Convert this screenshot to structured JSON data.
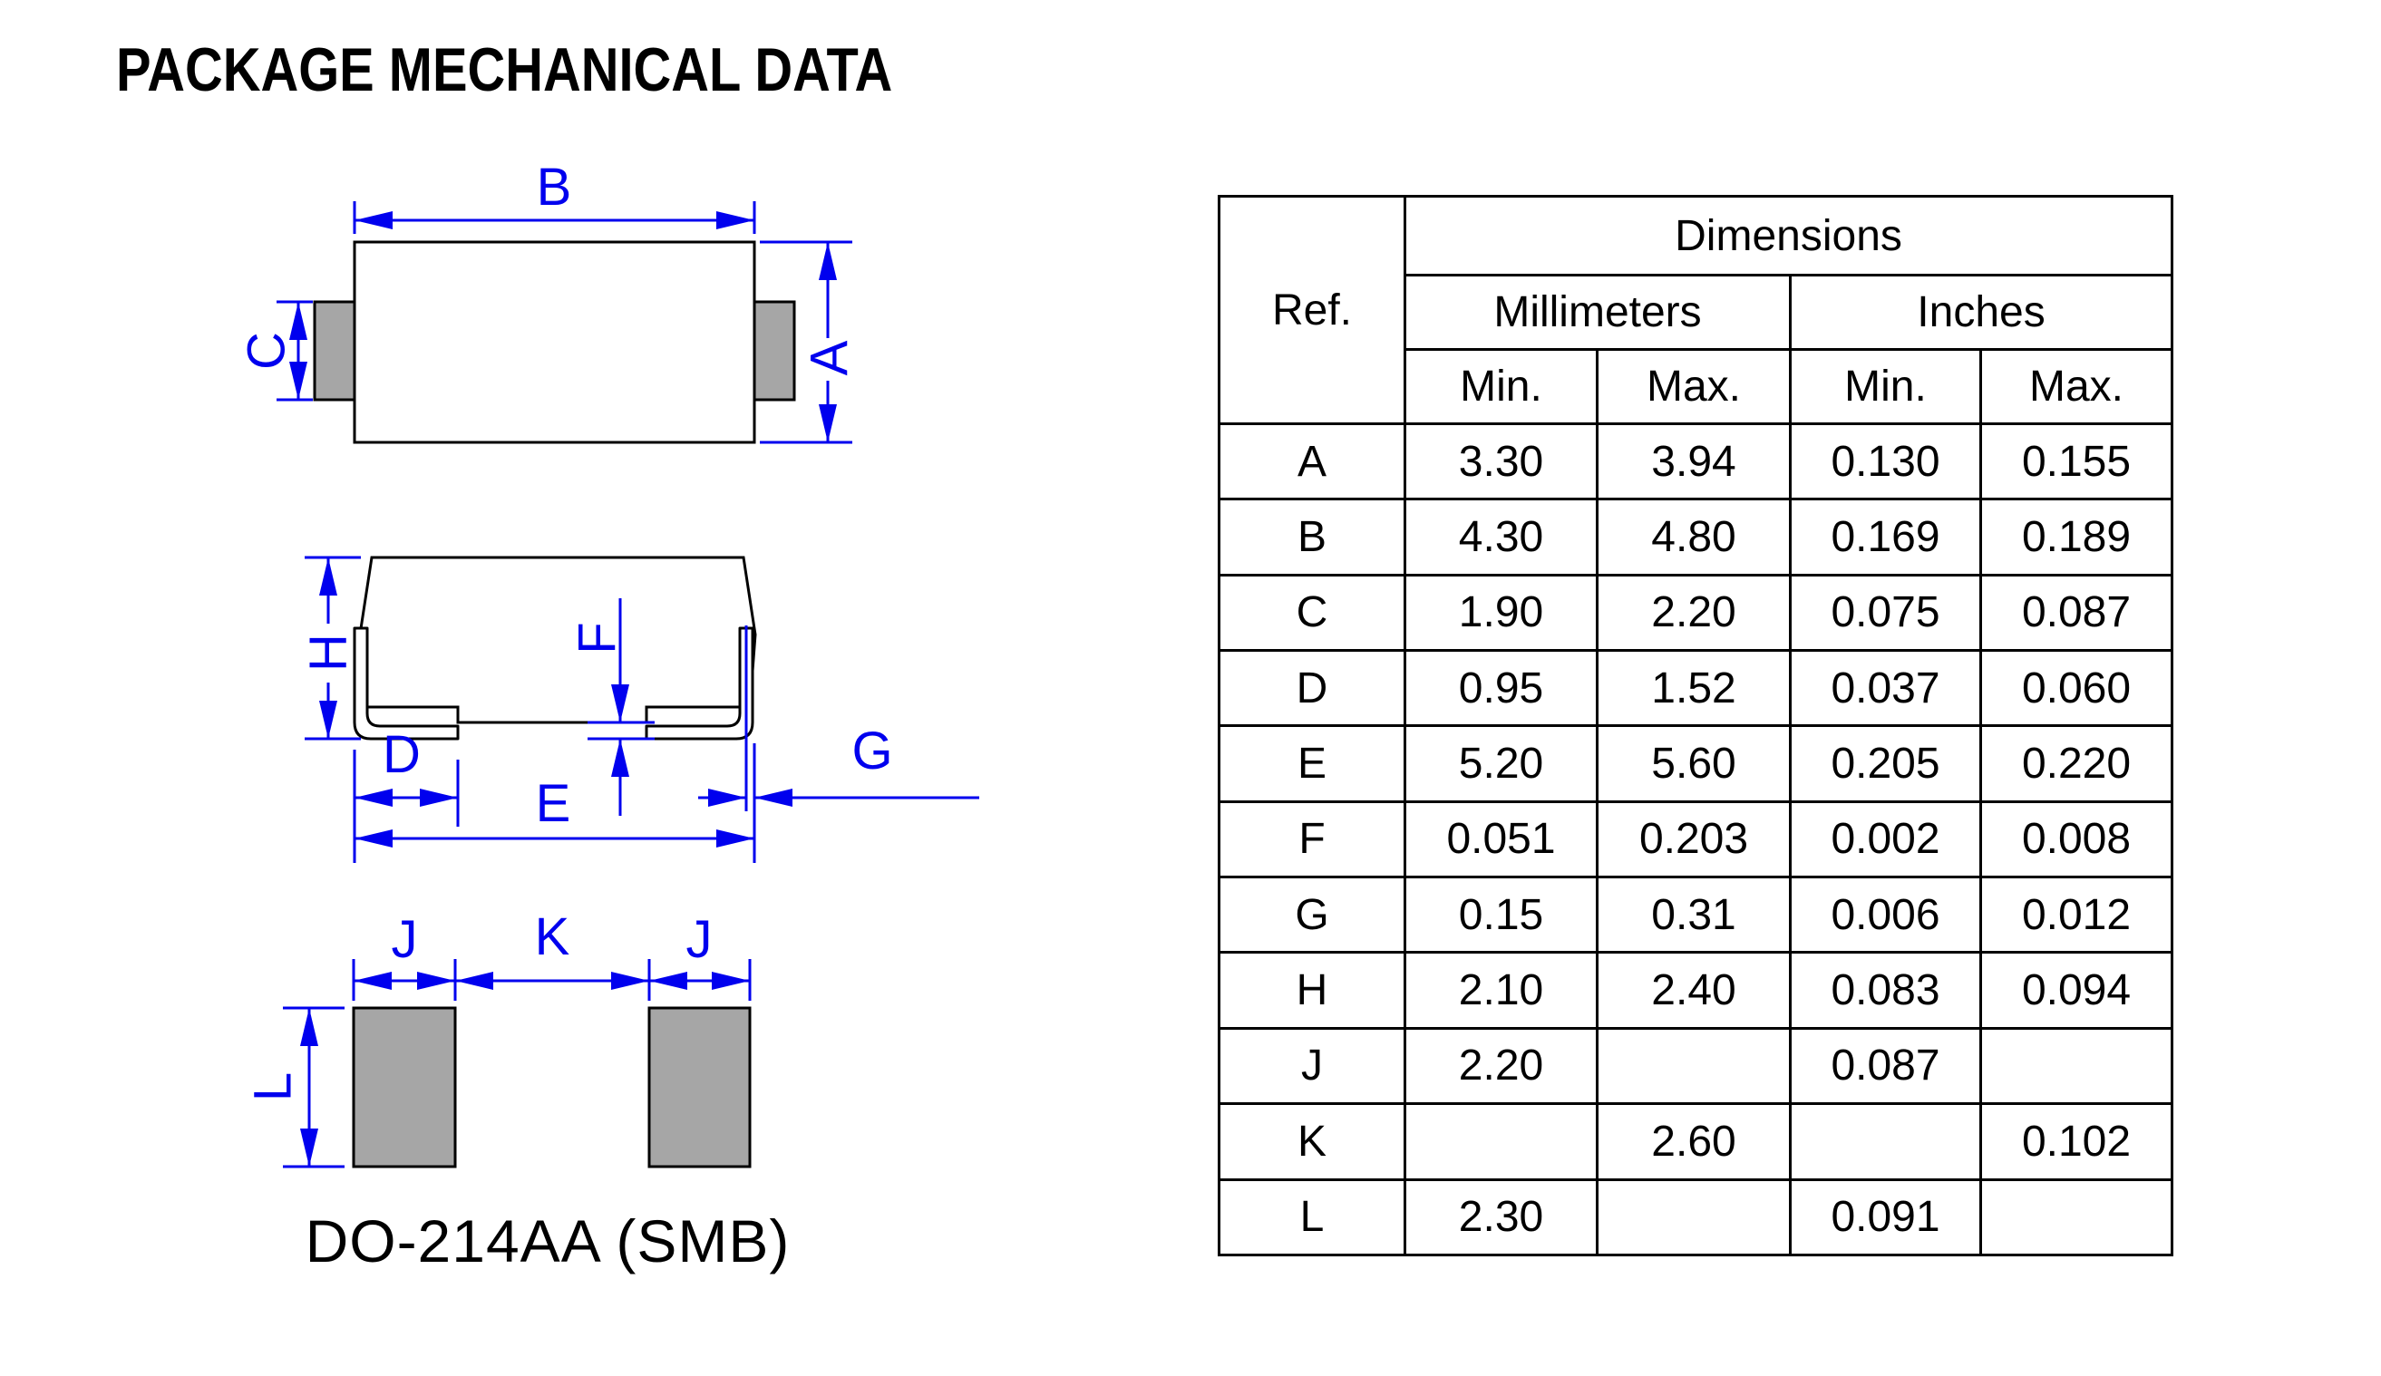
{
  "title": "PACKAGE MECHANICAL DATA",
  "package_name": "DO-214AA (SMB)",
  "colors": {
    "dimension_blue": "#0000EE",
    "pad_gray": "#A6A6A6",
    "line_black": "#000000"
  },
  "drawings": {
    "top_view": {
      "labels": {
        "b": "B",
        "c": "C",
        "a": "A"
      }
    },
    "side_view": {
      "labels": {
        "h": "H",
        "f": "F",
        "d": "D",
        "e": "E",
        "g": "G"
      }
    },
    "bottom_view": {
      "labels": {
        "j1": "J",
        "k": "K",
        "j2": "J",
        "l": "L"
      }
    }
  },
  "table": {
    "title": "Dimensions",
    "ref_header": "Ref.",
    "unit_headers": {
      "millimeters": "Millimeters",
      "inches": "Inches"
    },
    "col_headers": {
      "mm_min": "Min.",
      "mm_max": "Max.",
      "in_min": "Min.",
      "in_max": "Max."
    },
    "rows": [
      {
        "ref": "A",
        "mm_min": "3.30",
        "mm_max": "3.94",
        "in_min": "0.130",
        "in_max": "0.155"
      },
      {
        "ref": "B",
        "mm_min": "4.30",
        "mm_max": "4.80",
        "in_min": "0.169",
        "in_max": "0.189"
      },
      {
        "ref": "C",
        "mm_min": "1.90",
        "mm_max": "2.20",
        "in_min": "0.075",
        "in_max": "0.087"
      },
      {
        "ref": "D",
        "mm_min": "0.95",
        "mm_max": "1.52",
        "in_min": "0.037",
        "in_max": "0.060"
      },
      {
        "ref": "E",
        "mm_min": "5.20",
        "mm_max": "5.60",
        "in_min": "0.205",
        "in_max": "0.220"
      },
      {
        "ref": "F",
        "mm_min": "0.051",
        "mm_max": "0.203",
        "in_min": "0.002",
        "in_max": "0.008"
      },
      {
        "ref": "G",
        "mm_min": "0.15",
        "mm_max": "0.31",
        "in_min": "0.006",
        "in_max": "0.012"
      },
      {
        "ref": "H",
        "mm_min": "2.10",
        "mm_max": "2.40",
        "in_min": "0.083",
        "in_max": "0.094"
      },
      {
        "ref": "J",
        "mm_min": "2.20",
        "mm_max": "",
        "in_min": "0.087",
        "in_max": ""
      },
      {
        "ref": "K",
        "mm_min": "",
        "mm_max": "2.60",
        "in_min": "",
        "in_max": "0.102"
      },
      {
        "ref": "L",
        "mm_min": "2.30",
        "mm_max": "",
        "in_min": "0.091",
        "in_max": ""
      }
    ]
  }
}
